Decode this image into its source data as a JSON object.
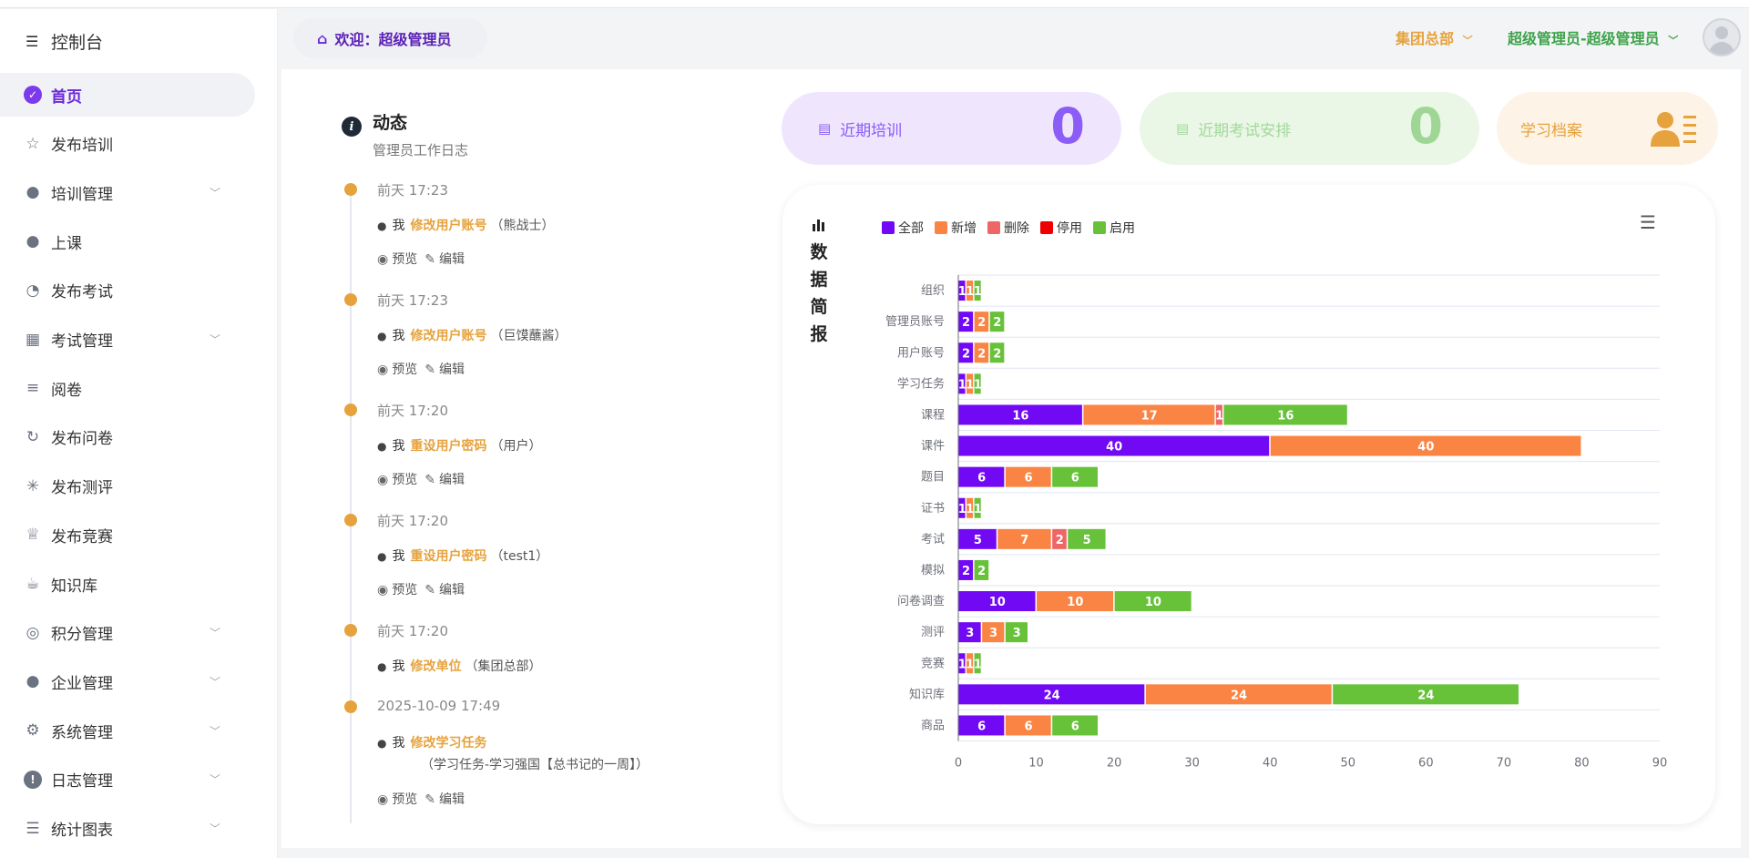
{
  "sidebar": {
    "title": "控制台",
    "items": [
      {
        "label": "首页",
        "icon": "check-circle-icon",
        "active": true,
        "expand": false
      },
      {
        "label": "发布培训",
        "icon": "star-icon",
        "expand": false
      },
      {
        "label": "培训管理",
        "icon": "user-icon",
        "expand": true
      },
      {
        "label": "上课",
        "icon": "user-icon",
        "expand": false
      },
      {
        "label": "发布考试",
        "icon": "exam-icon",
        "expand": false
      },
      {
        "label": "考试管理",
        "icon": "clipboard-icon",
        "expand": true
      },
      {
        "label": "阅卷",
        "icon": "checklist-icon",
        "expand": false
      },
      {
        "label": "发布问卷",
        "icon": "refresh-icon",
        "expand": false
      },
      {
        "label": "发布测评",
        "icon": "loading-icon",
        "expand": false
      },
      {
        "label": "发布竞赛",
        "icon": "trophy-icon",
        "expand": false
      },
      {
        "label": "知识库",
        "icon": "coffee-icon",
        "expand": false
      },
      {
        "label": "积分管理",
        "icon": "coins-icon",
        "expand": true
      },
      {
        "label": "企业管理",
        "icon": "user-icon",
        "expand": true
      },
      {
        "label": "系统管理",
        "icon": "gear-icon",
        "expand": true
      },
      {
        "label": "日志管理",
        "icon": "warning-icon",
        "expand": true
      },
      {
        "label": "统计图表",
        "icon": "sliders-icon",
        "expand": true
      }
    ]
  },
  "header": {
    "welcome": "欢迎：超级管理员",
    "org": "集团总部",
    "user": "超级管理员-超级管理员"
  },
  "timeline": {
    "title": "动态",
    "subtitle": "管理员工作日志",
    "entries": [
      {
        "time": "前天 17:23",
        "actor": "我",
        "action": "修改用户账号",
        "detail": "（熊战士）"
      },
      {
        "time": "前天 17:23",
        "actor": "我",
        "action": "修改用户账号",
        "detail": "（巨馍蘸酱）"
      },
      {
        "time": "前天 17:20",
        "actor": "我",
        "action": "重设用户密码",
        "detail": "（用户）"
      },
      {
        "time": "前天 17:20",
        "actor": "我",
        "action": "重设用户密码",
        "detail": "（test1）"
      },
      {
        "time": "前天 17:20",
        "actor": "我",
        "action": "修改单位",
        "detail": "（集团总部）"
      },
      {
        "time": "2025-10-09 17:49",
        "actor": "我",
        "action": "修改学习任务",
        "detail": "（学习任务-学习强国【总书记的一周】）"
      }
    ],
    "preview": "预览",
    "edit": "编辑"
  },
  "cards": {
    "training": {
      "label": "近期培训",
      "count": "0"
    },
    "exam": {
      "label": "近期考试安排",
      "count": "0"
    },
    "archive": {
      "label": "学习档案"
    }
  },
  "chart_panel": {
    "side_title": [
      "数",
      "据",
      "简",
      "报"
    ]
  },
  "chart_data": {
    "type": "bar",
    "orientation": "horizontal",
    "stacked": true,
    "categories": [
      "组织",
      "管理员账号",
      "用户账号",
      "学习任务",
      "课程",
      "课件",
      "题目",
      "证书",
      "考试",
      "模拟",
      "问卷调查",
      "测评",
      "竞赛",
      "知识库",
      "商品"
    ],
    "series": [
      {
        "name": "全部",
        "color": "#7209f5",
        "values": [
          1,
          2,
          2,
          1,
          16,
          40,
          6,
          1,
          5,
          2,
          10,
          3,
          1,
          24,
          6
        ]
      },
      {
        "name": "新增",
        "color": "#fa8443",
        "values": [
          1,
          2,
          2,
          1,
          17,
          40,
          6,
          1,
          7,
          0,
          10,
          3,
          1,
          24,
          6
        ]
      },
      {
        "name": "删除",
        "color": "#ee6666",
        "values": [
          0,
          0,
          0,
          0,
          1,
          0,
          0,
          0,
          2,
          0,
          0,
          0,
          0,
          0,
          0
        ]
      },
      {
        "name": "停用",
        "color": "#ee0000",
        "values": [
          0,
          0,
          0,
          0,
          0,
          0,
          0,
          0,
          0,
          0,
          0,
          0,
          0,
          0,
          0
        ]
      },
      {
        "name": "启用",
        "color": "#67c23a",
        "values": [
          1,
          2,
          2,
          1,
          16,
          0,
          6,
          1,
          5,
          2,
          10,
          3,
          1,
          24,
          6
        ]
      }
    ],
    "xticks": [
      0,
      10,
      20,
      30,
      40,
      50,
      60,
      70,
      80,
      90
    ],
    "xlim": [
      0,
      90
    ],
    "legend_position": "top-left"
  }
}
